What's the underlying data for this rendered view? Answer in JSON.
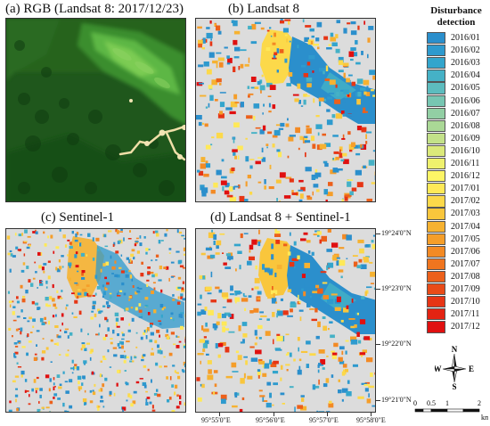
{
  "panels": {
    "a": {
      "title": "(a) RGB (Landsat 8: 2017/12/23)"
    },
    "b": {
      "title": "(b) Landsat 8"
    },
    "c": {
      "title": "(c) Sentinel-1"
    },
    "d": {
      "title": "(d) Landsat 8 + Sentinel-1"
    }
  },
  "legend": {
    "title": "Disturbance detection",
    "items": [
      {
        "label": "2016/01",
        "color": "#2b8fcc"
      },
      {
        "label": "2016/02",
        "color": "#2e9ace"
      },
      {
        "label": "2016/03",
        "color": "#33a5cc"
      },
      {
        "label": "2016/04",
        "color": "#45b1c6"
      },
      {
        "label": "2016/05",
        "color": "#5dbcbe"
      },
      {
        "label": "2016/06",
        "color": "#77c6b2"
      },
      {
        "label": "2016/07",
        "color": "#92cfa4"
      },
      {
        "label": "2016/08",
        "color": "#aad896"
      },
      {
        "label": "2016/09",
        "color": "#c3e189"
      },
      {
        "label": "2016/10",
        "color": "#dbe97a"
      },
      {
        "label": "2016/11",
        "color": "#eff16d"
      },
      {
        "label": "2016/12",
        "color": "#fdf566"
      },
      {
        "label": "2017/01",
        "color": "#ffe958"
      },
      {
        "label": "2017/02",
        "color": "#fcd94a"
      },
      {
        "label": "2017/03",
        "color": "#f9c63c"
      },
      {
        "label": "2017/04",
        "color": "#f6b231"
      },
      {
        "label": "2017/05",
        "color": "#f59e2a"
      },
      {
        "label": "2017/06",
        "color": "#f38a24"
      },
      {
        "label": "2017/07",
        "color": "#f0751f"
      },
      {
        "label": "2017/08",
        "color": "#ec601b"
      },
      {
        "label": "2017/09",
        "color": "#e94b18"
      },
      {
        "label": "2017/10",
        "color": "#e63515"
      },
      {
        "label": "2017/11",
        "color": "#e32312"
      },
      {
        "label": "2017/12",
        "color": "#e01010"
      }
    ]
  },
  "latitude_labels": [
    "19°24'0\"N",
    "19°23'0\"N",
    "19°22'0\"N",
    "19°21'0\"N"
  ],
  "longitude_labels": [
    "95°55'0\"E",
    "95°56'0\"E",
    "95°57'0\"E",
    "95°58'0\"E"
  ],
  "north_arrow": {
    "n": "N",
    "s": "S",
    "e": "E",
    "w": "W",
    "icon": "north-arrow-icon"
  },
  "scale_bar": {
    "ticks": [
      "0",
      "0.5",
      "1",
      "2"
    ],
    "unit": "km",
    "ticks_km": [
      0,
      0.5,
      1,
      2
    ]
  },
  "colors": {
    "background": "#dcdcdc",
    "forest_dark": "#1d5a1c",
    "forest_light": "#4fb339",
    "bare_soil": "#f1dfa8"
  }
}
